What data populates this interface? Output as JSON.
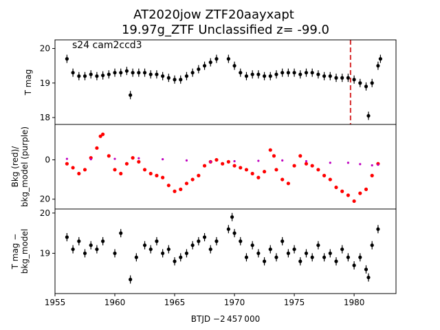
{
  "title_line1": "AT2020jow  ZTF20aayxapt",
  "title_line2": "19.97g_ZTF Unclassified z= -99.0",
  "annotation": "s24 cam2ccd3",
  "colors": {
    "data": "#000000",
    "background_raw": "#ff0000",
    "background_model": "#bf00bf",
    "event_line": "#d62728"
  },
  "x_axis": {
    "label": "BTJD −2 457 000",
    "range": [
      1955.0,
      1983.5
    ],
    "ticks": [
      1955,
      1960,
      1965,
      1970,
      1975,
      1980
    ]
  },
  "chart_data": [
    {
      "type": "scatter",
      "panel": "top",
      "ylabel": "T mag",
      "ylim": [
        20.25,
        17.8
      ],
      "yticks": [
        18,
        19,
        20
      ],
      "inverted_y": true,
      "event_marker_x": 1979.7,
      "series": [
        {
          "color": "#000000",
          "points": [
            [
              1956.0,
              19.7
            ],
            [
              1956.5,
              19.3
            ],
            [
              1957.0,
              19.2
            ],
            [
              1957.5,
              19.2
            ],
            [
              1958.0,
              19.25
            ],
            [
              1958.5,
              19.2
            ],
            [
              1959.0,
              19.22
            ],
            [
              1959.5,
              19.25
            ],
            [
              1960.0,
              19.3
            ],
            [
              1960.5,
              19.3
            ],
            [
              1961.0,
              19.35
            ],
            [
              1961.3,
              18.65
            ],
            [
              1961.5,
              19.3
            ],
            [
              1962.0,
              19.3
            ],
            [
              1962.5,
              19.3
            ],
            [
              1963.0,
              19.25
            ],
            [
              1963.5,
              19.25
            ],
            [
              1964.0,
              19.2
            ],
            [
              1964.5,
              19.15
            ],
            [
              1965.0,
              19.1
            ],
            [
              1965.5,
              19.1
            ],
            [
              1966.0,
              19.2
            ],
            [
              1966.5,
              19.3
            ],
            [
              1967.0,
              19.4
            ],
            [
              1967.5,
              19.5
            ],
            [
              1968.0,
              19.6
            ],
            [
              1968.5,
              19.7
            ],
            [
              1969.5,
              19.7
            ],
            [
              1970.0,
              19.5
            ],
            [
              1970.5,
              19.3
            ],
            [
              1971.0,
              19.2
            ],
            [
              1971.5,
              19.25
            ],
            [
              1972.0,
              19.25
            ],
            [
              1972.5,
              19.2
            ],
            [
              1973.0,
              19.2
            ],
            [
              1973.5,
              19.25
            ],
            [
              1974.0,
              19.3
            ],
            [
              1974.5,
              19.3
            ],
            [
              1975.0,
              19.3
            ],
            [
              1975.5,
              19.25
            ],
            [
              1976.0,
              19.3
            ],
            [
              1976.5,
              19.3
            ],
            [
              1977.0,
              19.25
            ],
            [
              1977.5,
              19.2
            ],
            [
              1978.0,
              19.2
            ],
            [
              1978.5,
              19.15
            ],
            [
              1979.0,
              19.15
            ],
            [
              1979.5,
              19.15
            ],
            [
              1980.0,
              19.1
            ],
            [
              1980.5,
              19.0
            ],
            [
              1981.0,
              18.9
            ],
            [
              1981.2,
              18.05
            ],
            [
              1981.5,
              19.0
            ],
            [
              1982.0,
              19.5
            ],
            [
              1982.2,
              19.7
            ]
          ]
        }
      ]
    },
    {
      "type": "scatter",
      "panel": "middle",
      "ylabel": "Bkg (red)/ bkg_model (purple)",
      "ylim": [
        -18,
        25
      ],
      "yticks": [
        0,
        20
      ],
      "series": [
        {
          "color": "#ff0000",
          "points": [
            [
              1956.0,
              2
            ],
            [
              1956.5,
              4
            ],
            [
              1957.0,
              7
            ],
            [
              1957.5,
              5
            ],
            [
              1958.0,
              -1
            ],
            [
              1958.5,
              -6
            ],
            [
              1958.8,
              -12
            ],
            [
              1959.0,
              -13
            ],
            [
              1959.5,
              -2
            ],
            [
              1960.0,
              5
            ],
            [
              1960.5,
              7
            ],
            [
              1961.0,
              2
            ],
            [
              1961.5,
              -1
            ],
            [
              1962.0,
              1
            ],
            [
              1962.5,
              5
            ],
            [
              1963.0,
              7
            ],
            [
              1963.5,
              8
            ],
            [
              1964.0,
              9
            ],
            [
              1964.5,
              13
            ],
            [
              1965.0,
              16
            ],
            [
              1965.5,
              15
            ],
            [
              1966.0,
              12
            ],
            [
              1966.5,
              10
            ],
            [
              1967.0,
              8
            ],
            [
              1967.5,
              3
            ],
            [
              1968.0,
              1
            ],
            [
              1968.5,
              0
            ],
            [
              1969.0,
              2
            ],
            [
              1969.5,
              1
            ],
            [
              1970.0,
              3
            ],
            [
              1970.5,
              4
            ],
            [
              1971.0,
              5
            ],
            [
              1971.5,
              7
            ],
            [
              1972.0,
              9
            ],
            [
              1972.5,
              6
            ],
            [
              1973.0,
              -5
            ],
            [
              1973.3,
              -2
            ],
            [
              1973.5,
              5
            ],
            [
              1974.0,
              10
            ],
            [
              1974.5,
              12
            ],
            [
              1975.0,
              3
            ],
            [
              1975.5,
              -2
            ],
            [
              1976.0,
              2
            ],
            [
              1976.5,
              3
            ],
            [
              1977.0,
              5
            ],
            [
              1977.5,
              8
            ],
            [
              1978.0,
              10
            ],
            [
              1978.5,
              14
            ],
            [
              1979.0,
              16
            ],
            [
              1979.5,
              18
            ],
            [
              1980.0,
              21
            ],
            [
              1980.5,
              17
            ],
            [
              1981.0,
              15
            ],
            [
              1981.5,
              8
            ],
            [
              1982.0,
              2
            ]
          ]
        },
        {
          "color": "#bf00bf",
          "points": [
            [
              1956.0,
              -0.5
            ],
            [
              1958.0,
              -0.3
            ],
            [
              1960.0,
              -0.5
            ],
            [
              1962.0,
              -0.8
            ],
            [
              1964.0,
              -0.3
            ],
            [
              1966.0,
              0.3
            ],
            [
              1968.0,
              1.0
            ],
            [
              1970.0,
              0.7
            ],
            [
              1972.0,
              0.5
            ],
            [
              1974.0,
              0.3
            ],
            [
              1976.0,
              0.7
            ],
            [
              1978.0,
              1.5
            ],
            [
              1979.5,
              1.5
            ],
            [
              1980.5,
              2.2
            ],
            [
              1981.5,
              2.8
            ],
            [
              1982.0,
              2.5
            ]
          ]
        }
      ]
    },
    {
      "type": "scatter",
      "panel": "bottom",
      "ylabel": "T mag − bkg_model",
      "ylim": [
        20.1,
        18.0
      ],
      "yticks": [
        19,
        20
      ],
      "inverted_y": true,
      "series": [
        {
          "color": "#000000",
          "points": [
            [
              1956.0,
              19.4
            ],
            [
              1956.5,
              19.1
            ],
            [
              1957.0,
              19.3
            ],
            [
              1957.5,
              19.0
            ],
            [
              1958.0,
              19.2
            ],
            [
              1958.5,
              19.1
            ],
            [
              1959.0,
              19.3
            ],
            [
              1960.0,
              19.0
            ],
            [
              1960.5,
              19.5
            ],
            [
              1961.3,
              18.35
            ],
            [
              1961.8,
              18.9
            ],
            [
              1962.5,
              19.2
            ],
            [
              1963.0,
              19.1
            ],
            [
              1963.5,
              19.3
            ],
            [
              1964.0,
              19.0
            ],
            [
              1964.5,
              19.1
            ],
            [
              1965.0,
              18.8
            ],
            [
              1965.5,
              18.9
            ],
            [
              1966.0,
              19.0
            ],
            [
              1966.5,
              19.2
            ],
            [
              1967.0,
              19.3
            ],
            [
              1967.5,
              19.4
            ],
            [
              1968.0,
              19.1
            ],
            [
              1968.5,
              19.3
            ],
            [
              1969.5,
              19.6
            ],
            [
              1969.8,
              19.9
            ],
            [
              1970.0,
              19.5
            ],
            [
              1970.5,
              19.3
            ],
            [
              1971.0,
              18.9
            ],
            [
              1971.5,
              19.2
            ],
            [
              1972.0,
              19.0
            ],
            [
              1972.5,
              18.8
            ],
            [
              1973.0,
              19.1
            ],
            [
              1973.5,
              18.9
            ],
            [
              1974.0,
              19.3
            ],
            [
              1974.5,
              19.0
            ],
            [
              1975.0,
              19.1
            ],
            [
              1975.5,
              18.8
            ],
            [
              1976.0,
              19.0
            ],
            [
              1976.5,
              18.9
            ],
            [
              1977.0,
              19.2
            ],
            [
              1977.5,
              18.9
            ],
            [
              1978.0,
              19.0
            ],
            [
              1978.5,
              18.8
            ],
            [
              1979.0,
              19.1
            ],
            [
              1979.5,
              18.9
            ],
            [
              1980.0,
              18.7
            ],
            [
              1980.5,
              18.9
            ],
            [
              1981.0,
              18.6
            ],
            [
              1981.2,
              18.4
            ],
            [
              1981.5,
              19.2
            ],
            [
              1982.0,
              19.6
            ]
          ]
        }
      ]
    }
  ]
}
